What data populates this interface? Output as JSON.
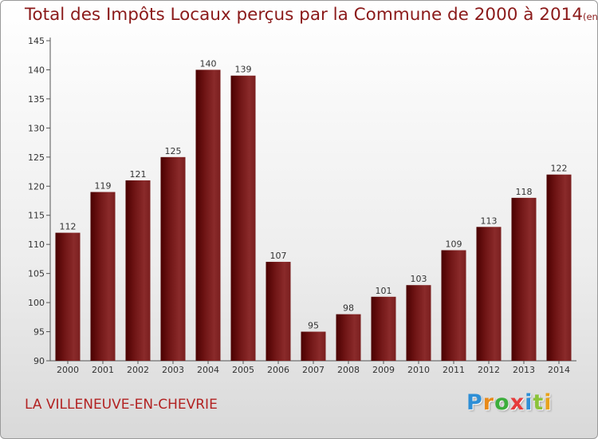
{
  "title": "Total des Impôts Locaux perçus par la Commune de 2000 à 2014",
  "subtitle": "(en milliers d'€)",
  "commune": "LA VILLENEUVE-EN-CHEVRIE",
  "logo": {
    "letters": [
      "P",
      "r",
      "o",
      "x",
      "i",
      "t",
      "i"
    ],
    "colors": [
      "#2e8fd6",
      "#e88a1a",
      "#3cae3c",
      "#e63c3c",
      "#2e8fd6",
      "#8bc33a",
      "#e8a21a"
    ]
  },
  "colors": {
    "bar_dark": "#4a0000",
    "bar_light": "#8a2a2a",
    "text": "#8b1a1a"
  },
  "chart_data": {
    "type": "bar",
    "title": "Total des Impôts Locaux perçus par la Commune de 2000 à 2014",
    "xlabel": "",
    "ylabel": "",
    "ylim": [
      90,
      145
    ],
    "yticks": [
      90,
      95,
      100,
      105,
      110,
      115,
      120,
      125,
      130,
      135,
      140,
      145
    ],
    "categories": [
      "2000",
      "2001",
      "2002",
      "2003",
      "2004",
      "2005",
      "2006",
      "2007",
      "2008",
      "2009",
      "2010",
      "2011",
      "2012",
      "2013",
      "2014"
    ],
    "values": [
      112,
      119,
      121,
      125,
      140,
      139,
      107,
      95,
      98,
      101,
      103,
      109,
      113,
      118,
      122
    ],
    "grid": false,
    "legend": "none"
  }
}
